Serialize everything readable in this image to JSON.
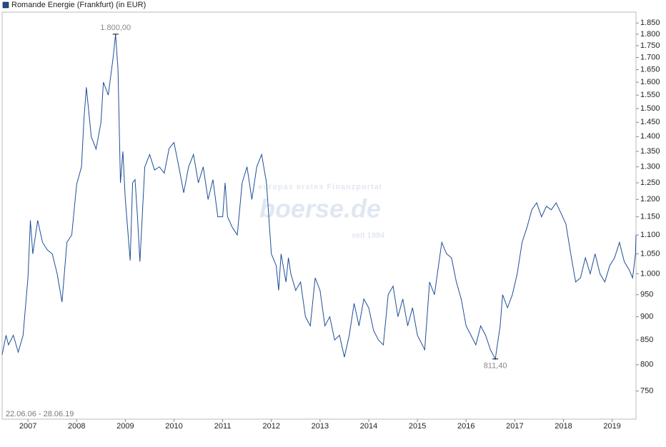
{
  "chart_data": {
    "type": "line",
    "title": "Romande Energie (Frankfurt) (in EUR)",
    "date_range": "22.06.06 - 28.06.19",
    "watermark": {
      "tagline": "europas erstes Finanzportal",
      "brand": "boerse.de",
      "since": "seit 1994"
    },
    "log_scale": true,
    "color": "#1f4e96",
    "xlim": [
      2006.47,
      2019.49
    ],
    "xticks": [
      2007,
      2008,
      2009,
      2010,
      2011,
      2012,
      2013,
      2014,
      2015,
      2016,
      2017,
      2018,
      2019
    ],
    "ylim": [
      700,
      1900
    ],
    "yticks": [
      750,
      800,
      850,
      900,
      950,
      {
        "value": 1000,
        "label": "1.000"
      },
      {
        "value": 1050,
        "label": "1.050"
      },
      {
        "value": 1100,
        "label": "1.100"
      },
      {
        "value": 1150,
        "label": "1.150"
      },
      {
        "value": 1200,
        "label": "1.200"
      },
      {
        "value": 1250,
        "label": "1.250"
      },
      {
        "value": 1300,
        "label": "1.300"
      },
      {
        "value": 1350,
        "label": "1.350"
      },
      {
        "value": 1400,
        "label": "1.400"
      },
      {
        "value": 1450,
        "label": "1.450"
      },
      {
        "value": 1500,
        "label": "1.500"
      },
      {
        "value": 1550,
        "label": "1.550"
      },
      {
        "value": 1600,
        "label": "1.600"
      },
      {
        "value": 1650,
        "label": "1.650"
      },
      {
        "value": 1700,
        "label": "1.700"
      },
      {
        "value": 1750,
        "label": "1.750"
      },
      {
        "value": 1800,
        "label": "1.800"
      },
      {
        "value": 1850,
        "label": "1.850"
      }
    ],
    "x": [
      2006.47,
      2006.55,
      2006.6,
      2006.7,
      2006.8,
      2006.9,
      2007.0,
      2007.05,
      2007.1,
      2007.2,
      2007.3,
      2007.4,
      2007.5,
      2007.6,
      2007.7,
      2007.8,
      2007.9,
      2008.0,
      2008.1,
      2008.15,
      2008.2,
      2008.3,
      2008.4,
      2008.5,
      2008.55,
      2008.65,
      2008.75,
      2008.8,
      2008.85,
      2008.9,
      2008.95,
      2009.0,
      2009.1,
      2009.15,
      2009.2,
      2009.25,
      2009.3,
      2009.4,
      2009.5,
      2009.6,
      2009.7,
      2009.8,
      2009.9,
      2010.0,
      2010.1,
      2010.2,
      2010.3,
      2010.4,
      2010.5,
      2010.6,
      2010.7,
      2010.8,
      2010.9,
      2011.0,
      2011.05,
      2011.1,
      2011.2,
      2011.3,
      2011.4,
      2011.5,
      2011.6,
      2011.7,
      2011.8,
      2011.9,
      2012.0,
      2012.1,
      2012.15,
      2012.2,
      2012.3,
      2012.35,
      2012.4,
      2012.5,
      2012.6,
      2012.7,
      2012.8,
      2012.9,
      2013.0,
      2013.1,
      2013.2,
      2013.3,
      2013.4,
      2013.5,
      2013.6,
      2013.7,
      2013.8,
      2013.9,
      2014.0,
      2014.1,
      2014.2,
      2014.3,
      2014.4,
      2014.5,
      2014.6,
      2014.7,
      2014.8,
      2014.9,
      2015.0,
      2015.1,
      2015.15,
      2015.25,
      2015.35,
      2015.5,
      2015.6,
      2015.7,
      2015.8,
      2015.9,
      2016.0,
      2016.1,
      2016.2,
      2016.3,
      2016.4,
      2016.5,
      2016.6,
      2016.7,
      2016.75,
      2016.85,
      2016.95,
      2017.05,
      2017.15,
      2017.25,
      2017.35,
      2017.45,
      2017.55,
      2017.65,
      2017.75,
      2017.85,
      2017.95,
      2018.05,
      2018.15,
      2018.25,
      2018.35,
      2018.45,
      2018.55,
      2018.65,
      2018.75,
      2018.85,
      2018.95,
      2019.05,
      2019.15,
      2019.25,
      2019.35,
      2019.42,
      2019.48,
      2019.49
    ],
    "values": [
      820,
      860,
      840,
      860,
      825,
      860,
      990,
      1140,
      1050,
      1140,
      1080,
      1060,
      1050,
      1000,
      933,
      1080,
      1100,
      1245,
      1300,
      1460,
      1580,
      1400,
      1358,
      1450,
      1600,
      1550,
      1700,
      1800,
      1650,
      1250,
      1350,
      1200,
      1033,
      1250,
      1260,
      1150,
      1030,
      1300,
      1340,
      1290,
      1300,
      1280,
      1360,
      1380,
      1300,
      1220,
      1300,
      1340,
      1250,
      1300,
      1200,
      1260,
      1150,
      1150,
      1250,
      1150,
      1120,
      1100,
      1250,
      1300,
      1200,
      1300,
      1340,
      1250,
      1050,
      1020,
      960,
      1050,
      980,
      1040,
      1000,
      960,
      980,
      900,
      880,
      990,
      960,
      880,
      900,
      850,
      860,
      815,
      860,
      930,
      880,
      940,
      920,
      870,
      850,
      840,
      950,
      970,
      900,
      940,
      880,
      920,
      860,
      840,
      830,
      980,
      950,
      1080,
      1050,
      1040,
      980,
      940,
      880,
      860,
      840,
      880,
      860,
      830,
      811.4,
      880,
      950,
      920,
      950,
      1000,
      1080,
      1120,
      1170,
      1190,
      1150,
      1180,
      1170,
      1190,
      1160,
      1130,
      1050,
      980,
      990,
      1040,
      1000,
      1050,
      1000,
      980,
      1020,
      1040,
      1080,
      1030,
      1010,
      990,
      1050,
      1100
    ],
    "annotations": [
      {
        "label": "1.800,00",
        "value": 1800
      },
      {
        "label": "811,40",
        "value": 811.4
      }
    ]
  }
}
